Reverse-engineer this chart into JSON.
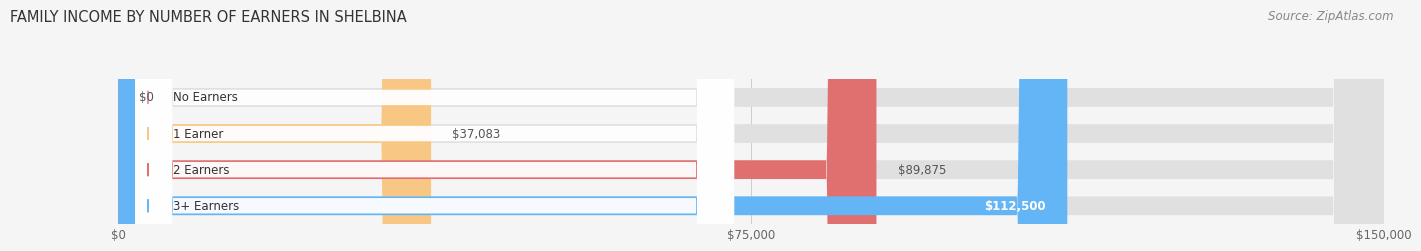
{
  "title": "FAMILY INCOME BY NUMBER OF EARNERS IN SHELBINA",
  "source": "Source: ZipAtlas.com",
  "categories": [
    "No Earners",
    "1 Earner",
    "2 Earners",
    "3+ Earners"
  ],
  "values": [
    0,
    37083,
    89875,
    112500
  ],
  "labels": [
    "$0",
    "$37,083",
    "$89,875",
    "$112,500"
  ],
  "bar_colors": [
    "#f48fb1",
    "#f9c784",
    "#e07070",
    "#64b5f6"
  ],
  "label_colors": [
    "#555555",
    "#555555",
    "#555555",
    "#ffffff"
  ],
  "background_color": "#f5f5f5",
  "bar_bg_color": "#e0e0e0",
  "xlim": [
    0,
    150000
  ],
  "xtick_values": [
    0,
    75000,
    150000
  ],
  "xtick_labels": [
    "$0",
    "$75,000",
    "$150,000"
  ],
  "title_fontsize": 10.5,
  "source_fontsize": 8.5,
  "bar_height": 0.52
}
